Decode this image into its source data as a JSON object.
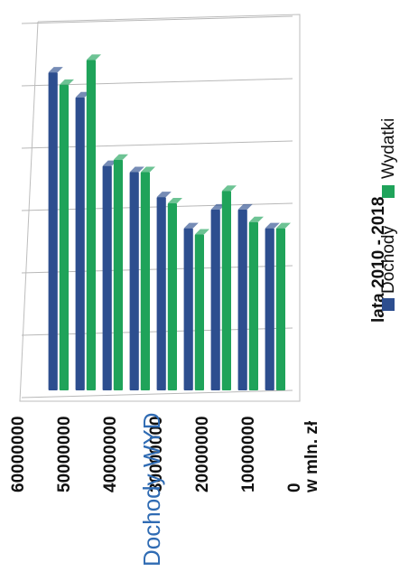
{
  "chart_data": {
    "type": "bar",
    "orientation": "horizontal-3d",
    "title": "lata 2010 - 2018",
    "xlabel": "w mln. zł",
    "overlay_label": "Dochody WYD",
    "xlim": [
      0,
      60000000
    ],
    "x_ticks": [
      "0",
      "10000000",
      "20000000",
      "30000000",
      "40000000",
      "50000000",
      "60000000"
    ],
    "categories": [
      "",
      "",
      "",
      "",
      "",
      "",
      "",
      "",
      ""
    ],
    "series": [
      {
        "name": "Dochody",
        "values": [
          26000000,
          29000000,
          29000000,
          26000000,
          31000000,
          35000000,
          36000000,
          47000000,
          51000000
        ]
      },
      {
        "name": "Wydatki",
        "values": [
          26000000,
          27000000,
          32000000,
          25000000,
          30000000,
          35000000,
          37000000,
          53000000,
          49000000
        ]
      }
    ],
    "colors": {
      "Dochody": "#2d4e8f",
      "Wydatki": "#1fa35a"
    },
    "grid": true,
    "legend_position": "right"
  }
}
